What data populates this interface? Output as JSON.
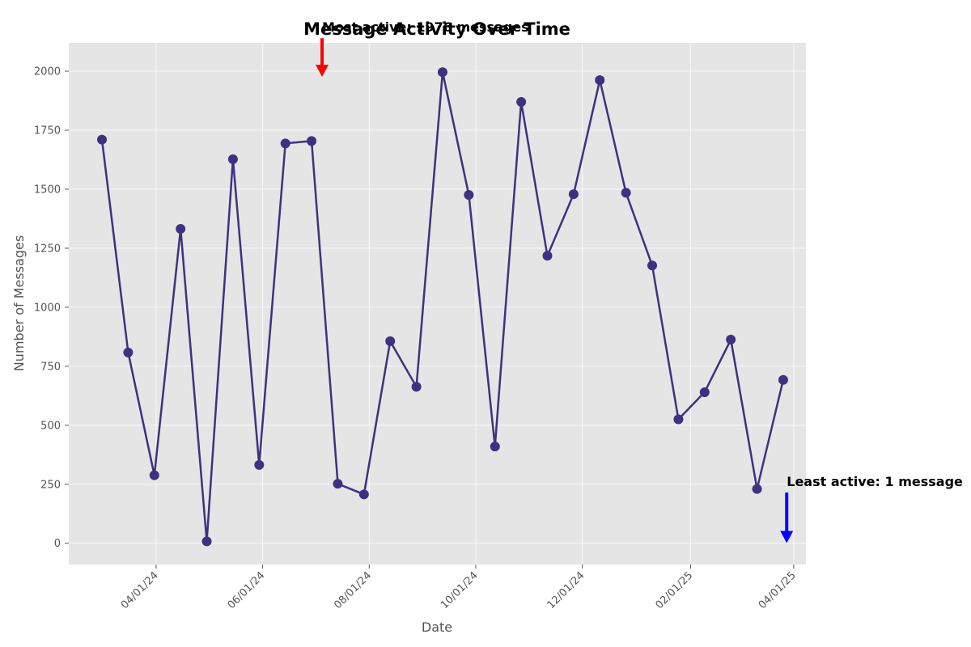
{
  "chart_data": {
    "type": "line",
    "title": "Message Activity Over Time",
    "xlabel": "Date",
    "ylabel": "Number of Messages",
    "x_range": [
      "2024-02-11",
      "2025-04-08"
    ],
    "ylim": [
      -90,
      2120
    ],
    "y_ticks": [
      0,
      250,
      500,
      750,
      1000,
      1250,
      1500,
      1750,
      2000
    ],
    "x_ticks": [
      {
        "date": "2024-04-01",
        "label": "04/01/24"
      },
      {
        "date": "2024-06-01",
        "label": "06/01/24"
      },
      {
        "date": "2024-08-01",
        "label": "08/01/24"
      },
      {
        "date": "2024-10-01",
        "label": "10/01/24"
      },
      {
        "date": "2024-12-01",
        "label": "12/01/24"
      },
      {
        "date": "2025-02-01",
        "label": "02/01/25"
      },
      {
        "date": "2025-04-01",
        "label": "04/01/25"
      }
    ],
    "grid": true,
    "line_color": "#3f3180",
    "background_color": "#e5e5e5",
    "series": [
      {
        "points": [
          {
            "x": "2024-03-01",
            "y": 1710
          },
          {
            "x": "2024-03-16",
            "y": 808
          },
          {
            "x": "2024-03-31",
            "y": 288
          },
          {
            "x": "2024-04-15",
            "y": 1332
          },
          {
            "x": "2024-04-30",
            "y": 8
          },
          {
            "x": "2024-05-15",
            "y": 1627
          },
          {
            "x": "2024-05-30",
            "y": 332
          },
          {
            "x": "2024-06-14",
            "y": 1694
          },
          {
            "x": "2024-06-29",
            "y": 1704
          },
          {
            "x": "2024-07-14",
            "y": 252
          },
          {
            "x": "2024-07-29",
            "y": 207
          },
          {
            "x": "2024-08-13",
            "y": 856
          },
          {
            "x": "2024-08-28",
            "y": 663
          },
          {
            "x": "2024-09-12",
            "y": 1996
          },
          {
            "x": "2024-09-27",
            "y": 1476
          },
          {
            "x": "2024-10-12",
            "y": 410
          },
          {
            "x": "2024-10-27",
            "y": 1870
          },
          {
            "x": "2024-11-11",
            "y": 1218
          },
          {
            "x": "2024-11-26",
            "y": 1479
          },
          {
            "x": "2024-12-11",
            "y": 1962
          },
          {
            "x": "2024-12-26",
            "y": 1485
          },
          {
            "x": "2025-01-10",
            "y": 1177
          },
          {
            "x": "2025-01-25",
            "y": 525
          },
          {
            "x": "2025-02-09",
            "y": 640
          },
          {
            "x": "2025-02-24",
            "y": 863
          },
          {
            "x": "2025-03-11",
            "y": 230
          },
          {
            "x": "2025-03-26",
            "y": 692
          }
        ]
      }
    ],
    "annotations": [
      {
        "text": "Most active: 1976 messages",
        "color": "#ff0000",
        "arrow_from": {
          "x": "2024-07-05",
          "y": 2140
        },
        "arrow_to": {
          "x": "2024-07-05",
          "y": 1976
        }
      },
      {
        "text": "Least active: 1 message",
        "color": "#0000ff",
        "arrow_from": {
          "x": "2025-03-28",
          "y": 215
        },
        "arrow_to": {
          "x": "2025-03-28",
          "y": 1
        }
      }
    ]
  }
}
